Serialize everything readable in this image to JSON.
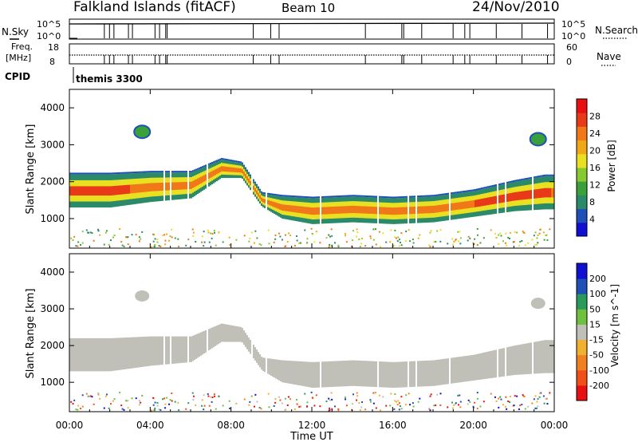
{
  "header": {
    "site": "Falkland Islands (fitACF)",
    "beam": "Beam 10",
    "date": "24/Nov/2010"
  },
  "panels": {
    "nsky": {
      "label": "N.Sky",
      "tick_top": "10^5",
      "tick_bottom": "10^0",
      "right_label": "N.Search",
      "right_tick_top": "10^5",
      "right_tick_bottom": "10^0"
    },
    "freq": {
      "label_1": "Freq.",
      "label_2": "[MHz]",
      "tick_top": "18",
      "tick_bottom": "8",
      "right_label": "Nave",
      "right_tick_top": "60",
      "right_tick_bottom": "0"
    },
    "cpid": {
      "label": "CPID",
      "value": "themis 3300"
    }
  },
  "colors": {
    "power": [
      "#1010d0",
      "#1e50b8",
      "#2a8a6a",
      "#3aa03a",
      "#88c830",
      "#e8e020",
      "#f0a818",
      "#f07818",
      "#e83a18",
      "#e81010"
    ],
    "velocity": [
      "#e81010",
      "#f05018",
      "#f08020",
      "#f0b030",
      "#c0c0b8",
      "#70c040",
      "#2a9a5a",
      "#1e50b8",
      "#1010d0"
    ]
  },
  "chart_data": [
    {
      "type": "heatmap",
      "title": "",
      "xlabel": "",
      "ylabel": "Slant Range [km]",
      "xlim_hours": [
        0,
        24
      ],
      "ylim": [
        200,
        4500
      ],
      "yticks": [
        1000,
        2000,
        3000,
        4000
      ],
      "colorbar": {
        "label": "Power [dB]",
        "ticks": [
          4,
          8,
          12,
          16,
          20,
          24,
          28
        ],
        "range": [
          0,
          30
        ]
      },
      "echo_band": {
        "time_hours": [
          0,
          2,
          4,
          6,
          7.5,
          8.5,
          9.5,
          10.5,
          12,
          14,
          16,
          18,
          20,
          22,
          23.5
        ],
        "center_km": [
          1750,
          1750,
          1850,
          1900,
          2350,
          2300,
          1500,
          1300,
          1200,
          1250,
          1200,
          1250,
          1400,
          1600,
          1700
        ],
        "width_km": [
          900,
          900,
          800,
          700,
          500,
          400,
          350,
          600,
          700,
          700,
          700,
          700,
          700,
          800,
          900
        ]
      },
      "patches": [
        {
          "t_hours": 3.6,
          "range_km": 3350,
          "label": "patch"
        },
        {
          "t_hours": 23.2,
          "range_km": 3150,
          "label": "patch"
        }
      ]
    },
    {
      "type": "heatmap",
      "title": "",
      "xlabel": "Time UT",
      "ylabel": "Slant Range [km]",
      "xlim_hours": [
        0,
        24
      ],
      "xticks": [
        "00:00",
        "04:00",
        "08:00",
        "12:00",
        "16:00",
        "20:00",
        "00:00"
      ],
      "ylim": [
        200,
        4500
      ],
      "yticks": [
        1000,
        2000,
        3000,
        4000
      ],
      "colorbar": {
        "label": "Velocity [m s^-1]",
        "ticks": [
          "200",
          "100",
          "50",
          "15",
          "-15",
          "-50",
          "-100",
          "-200"
        ],
        "range": [
          -250,
          250
        ]
      }
    }
  ]
}
